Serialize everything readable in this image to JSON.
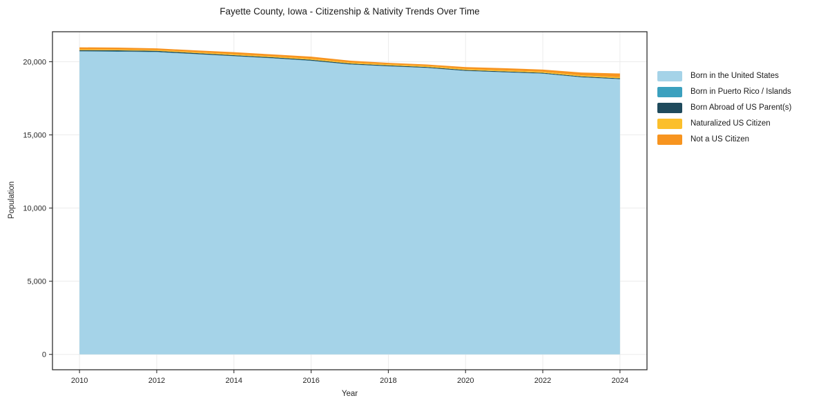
{
  "figure": {
    "ylabel": "Population",
    "xlabel": "Year"
  },
  "chart_data": {
    "type": "area",
    "stacked": true,
    "title": "Fayette County, Iowa - Citizenship & Nativity Trends Over Time",
    "xlabel": "Year",
    "ylabel": "Population",
    "x": [
      2010,
      2011,
      2012,
      2013,
      2014,
      2015,
      2016,
      2017,
      2018,
      2019,
      2020,
      2021,
      2022,
      2023,
      2024
    ],
    "series": [
      {
        "name": "Born in the United States",
        "color": "#a5d3e8",
        "values": [
          20700,
          20685,
          20655,
          20515,
          20375,
          20230,
          20060,
          19810,
          19685,
          19575,
          19370,
          19275,
          19180,
          18930,
          18800
        ]
      },
      {
        "name": "Born in Puerto Rico / Islands",
        "color": "#3ba0be",
        "values": [
          20,
          20,
          20,
          15,
          15,
          15,
          15,
          15,
          10,
          10,
          10,
          10,
          15,
          15,
          15
        ]
      },
      {
        "name": "Born Abroad of US Parent(s)",
        "color": "#1f4a5c",
        "values": [
          70,
          70,
          65,
          65,
          60,
          60,
          60,
          55,
          55,
          55,
          55,
          55,
          50,
          50,
          50
        ]
      },
      {
        "name": "Naturalized US Citizen",
        "color": "#fbbf2c",
        "values": [
          60,
          60,
          60,
          65,
          65,
          65,
          70,
          70,
          70,
          70,
          70,
          75,
          75,
          80,
          85
        ]
      },
      {
        "name": "Not a US Citizen",
        "color": "#f7941f",
        "values": [
          135,
          130,
          110,
          120,
          140,
          130,
          140,
          125,
          100,
          100,
          130,
          145,
          145,
          190,
          245
        ]
      }
    ],
    "xticks": [
      {
        "v": 2010,
        "label": "2010"
      },
      {
        "v": 2012,
        "label": "2012"
      },
      {
        "v": 2014,
        "label": "2014"
      },
      {
        "v": 2016,
        "label": "2016"
      },
      {
        "v": 2018,
        "label": "2018"
      },
      {
        "v": 2020,
        "label": "2020"
      },
      {
        "v": 2022,
        "label": "2022"
      },
      {
        "v": 2024,
        "label": "2024"
      }
    ],
    "yticks": [
      {
        "v": 0,
        "label": "0"
      },
      {
        "v": 5000,
        "label": "5,000"
      },
      {
        "v": 10000,
        "label": "10,000"
      },
      {
        "v": 15000,
        "label": "15,000"
      },
      {
        "v": 20000,
        "label": "20,000"
      }
    ],
    "xlim": [
      2009.3,
      2024.7
    ],
    "ylim": [
      -1050,
      22050
    ],
    "grid": true,
    "legend_position": "right-outside",
    "colors": {
      "grid": "#ebebeb",
      "spine": "#2e2e2e",
      "tick_text": "#262626",
      "background": "#ffffff"
    }
  }
}
